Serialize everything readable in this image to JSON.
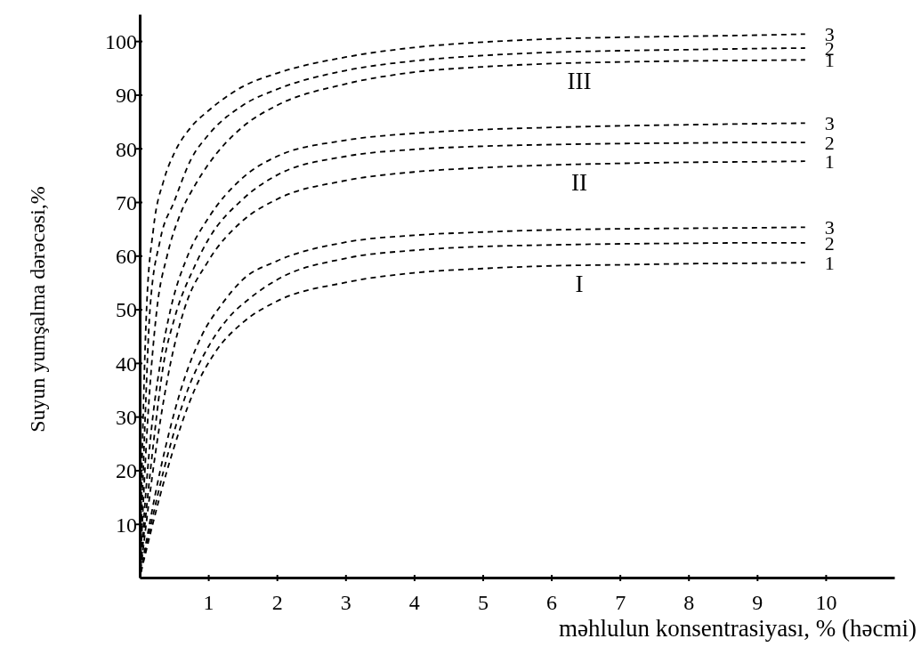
{
  "chart_data": {
    "type": "line",
    "xlabel": "məhlulun konsentrasiyası, % (həcmi)",
    "ylabel": "Suyun yumşalma dərəcəsi,%",
    "xlim": [
      0,
      11
    ],
    "ylim": [
      0,
      105
    ],
    "xticks": [
      1,
      2,
      3,
      4,
      5,
      6,
      7,
      8,
      9,
      10
    ],
    "yticks": [
      10,
      20,
      30,
      40,
      50,
      60,
      70,
      80,
      90,
      100
    ],
    "grid": false,
    "legend": false,
    "marker": "none",
    "line_style": "dashed",
    "series": [
      {
        "name": "3",
        "color": "#000000",
        "x": [
          0,
          0.05,
          0.1,
          0.2,
          0.35,
          0.5,
          0.75,
          1,
          1.5,
          2,
          3,
          4,
          5,
          6,
          7,
          8,
          9,
          9.7
        ],
        "values": [
          0,
          30,
          50,
          65,
          74,
          79,
          84,
          87,
          91.5,
          94,
          97,
          98.8,
          99.8,
          100.4,
          100.7,
          100.9,
          101.1,
          101.3
        ]
      },
      {
        "name": "2",
        "color": "#000000",
        "x": [
          0,
          0.08,
          0.15,
          0.3,
          0.5,
          0.75,
          1,
          1.5,
          2,
          3,
          4,
          5,
          6,
          7,
          8,
          9,
          9.7
        ],
        "values": [
          0,
          30,
          50,
          63,
          70,
          78,
          82.5,
          88,
          91,
          94.5,
          96.3,
          97.3,
          97.9,
          98.2,
          98.4,
          98.6,
          98.7
        ]
      },
      {
        "name": "1",
        "color": "#000000",
        "x": [
          0,
          0.12,
          0.25,
          0.4,
          0.6,
          0.8,
          1,
          1.5,
          2,
          3,
          4,
          5,
          6,
          7,
          8,
          9,
          9.7
        ],
        "values": [
          0,
          30,
          50,
          60,
          68,
          73,
          77,
          84,
          88,
          92,
          94.2,
          95.2,
          95.8,
          96.1,
          96.3,
          96.4,
          96.5
        ]
      },
      {
        "name": "3",
        "color": "#000000",
        "x": [
          0,
          0.15,
          0.3,
          0.45,
          0.7,
          1,
          1.5,
          2,
          3,
          4,
          5,
          6,
          7,
          8,
          9,
          9.7
        ],
        "values": [
          0,
          25,
          40,
          50,
          60,
          67,
          74.5,
          78.5,
          81.5,
          82.8,
          83.5,
          83.9,
          84.2,
          84.4,
          84.6,
          84.7
        ]
      },
      {
        "name": "2",
        "color": "#000000",
        "x": [
          0,
          0.2,
          0.35,
          0.5,
          0.8,
          1,
          1.5,
          2,
          3,
          4,
          5,
          6,
          7,
          8,
          9,
          9.7
        ],
        "values": [
          0,
          25,
          40,
          48,
          58,
          63,
          70.5,
          75,
          78.5,
          79.8,
          80.4,
          80.7,
          80.9,
          81,
          81.1,
          81.1
        ]
      },
      {
        "name": "1",
        "color": "#000000",
        "x": [
          0,
          0.25,
          0.45,
          0.65,
          1,
          1.5,
          2,
          3,
          4,
          5,
          6,
          7,
          8,
          9,
          9.7
        ],
        "values": [
          0,
          25,
          40,
          50,
          59,
          66.5,
          70.5,
          74,
          75.6,
          76.4,
          76.9,
          77.2,
          77.4,
          77.5,
          77.6
        ]
      },
      {
        "name": "3",
        "color": "#000000",
        "x": [
          0,
          0.3,
          0.6,
          0.9,
          1.2,
          1.5,
          2,
          3,
          4,
          5,
          6,
          7,
          8,
          9,
          9.7
        ],
        "values": [
          0,
          20,
          35,
          45,
          51,
          55.5,
          59,
          62.5,
          63.8,
          64.4,
          64.8,
          65,
          65.1,
          65.2,
          65.3
        ]
      },
      {
        "name": "2",
        "color": "#000000",
        "x": [
          0,
          0.35,
          0.7,
          1,
          1.3,
          1.6,
          2,
          3,
          4,
          5,
          6,
          7,
          8,
          9,
          9.7
        ],
        "values": [
          0,
          20,
          35,
          43,
          48.5,
          52,
          55.5,
          59.5,
          61,
          61.7,
          62,
          62.2,
          62.3,
          62.4,
          62.4
        ]
      },
      {
        "name": "1",
        "color": "#000000",
        "x": [
          0,
          0.4,
          0.8,
          1.1,
          1.5,
          2,
          3,
          4,
          5,
          6,
          7,
          8,
          9,
          9.7
        ],
        "values": [
          0,
          20,
          35,
          42,
          47.5,
          51.5,
          55,
          56.8,
          57.6,
          58.1,
          58.3,
          58.5,
          58.6,
          58.7
        ]
      }
    ],
    "annotations": [
      "III",
      "II",
      "I"
    ]
  }
}
